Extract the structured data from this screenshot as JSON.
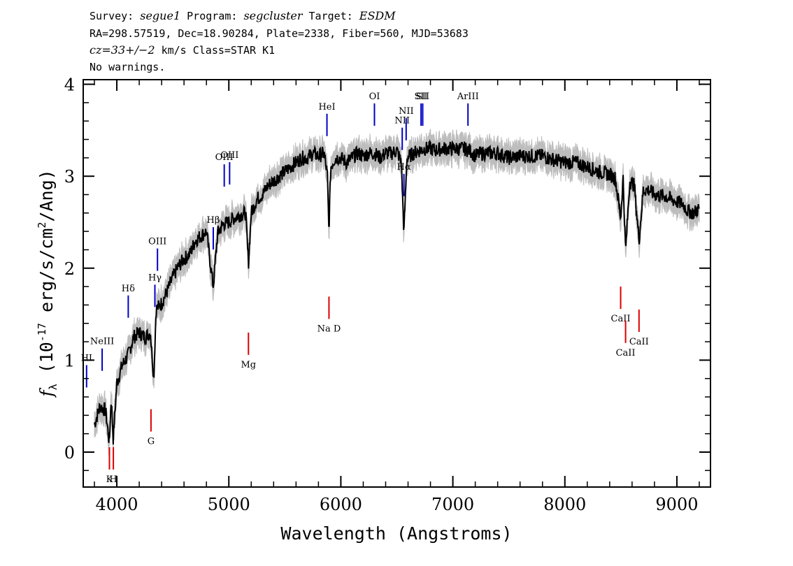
{
  "header": {
    "line1_a": "Survey: ",
    "line1_b": "segue1",
    "line1_c": " Program: ",
    "line1_d": "segcluster",
    "line1_e": " Target: ",
    "line1_f": "ESDM",
    "line2": "RA=298.57519, Dec=18.90284, Plate=2338, Fiber=560, MJD=53683",
    "line3_a": "cz=33+/−2",
    "line3_b": " km/s Class=STAR K1",
    "line4": "No warnings."
  },
  "colors": {
    "flux": "#000000",
    "error": "#bdbdbd",
    "emission": "#0000c8",
    "absorption": "#dc0000"
  },
  "chart_data": {
    "type": "line",
    "title": "",
    "xlabel": "Wavelength (Angstroms)",
    "ylabel": "fλ (10⁻¹⁷ erg/s/cm²/Ang)",
    "xlim": [
      3700,
      9300
    ],
    "ylim": [
      -0.38,
      4.05
    ],
    "x_ticks": [
      4000,
      5000,
      6000,
      7000,
      8000,
      9000
    ],
    "y_ticks": [
      0,
      1,
      2,
      3,
      4
    ],
    "grid": false,
    "legend": "none",
    "series": [
      {
        "name": "",
        "x": [
          3800,
          3850,
          3900,
          3933,
          3950,
          3968,
          4000,
          4050,
          4100,
          4150,
          4200,
          4250,
          4300,
          4330,
          4350,
          4400,
          4450,
          4500,
          4550,
          4600,
          4650,
          4700,
          4750,
          4800,
          4861,
          4900,
          4950,
          5000,
          5050,
          5100,
          5150,
          5175,
          5200,
          5250,
          5300,
          5350,
          5400,
          5450,
          5500,
          5550,
          5600,
          5650,
          5700,
          5750,
          5800,
          5850,
          5880,
          5893,
          5910,
          5950,
          6000,
          6050,
          6100,
          6150,
          6200,
          6250,
          6300,
          6350,
          6400,
          6450,
          6500,
          6540,
          6563,
          6590,
          6650,
          6700,
          6750,
          6800,
          6850,
          6900,
          6950,
          7000,
          7050,
          7100,
          7150,
          7200,
          7250,
          7300,
          7400,
          7500,
          7600,
          7700,
          7800,
          7900,
          8000,
          8100,
          8200,
          8300,
          8400,
          8450,
          8498,
          8520,
          8542,
          8580,
          8620,
          8662,
          8700,
          8750,
          8800,
          8900,
          9000,
          9050,
          9100,
          9150,
          9200
        ],
        "values": [
          0.3,
          0.5,
          0.45,
          0.1,
          0.6,
          0.15,
          0.75,
          0.95,
          1.05,
          1.25,
          1.3,
          1.25,
          1.3,
          0.8,
          1.55,
          1.62,
          1.75,
          1.9,
          2.02,
          2.1,
          2.15,
          2.3,
          2.35,
          2.4,
          1.8,
          2.38,
          2.48,
          2.5,
          2.55,
          2.58,
          2.6,
          2.05,
          2.6,
          2.75,
          2.8,
          2.9,
          2.95,
          3.0,
          3.05,
          3.1,
          3.15,
          3.2,
          3.2,
          3.25,
          3.22,
          3.25,
          3.0,
          2.4,
          3.1,
          3.2,
          3.2,
          3.15,
          3.2,
          3.25,
          3.22,
          3.25,
          3.25,
          3.2,
          3.25,
          3.25,
          3.28,
          3.15,
          2.38,
          3.2,
          3.25,
          3.28,
          3.3,
          3.3,
          3.28,
          3.3,
          3.3,
          3.3,
          3.3,
          3.3,
          3.28,
          3.22,
          3.25,
          3.25,
          3.25,
          3.2,
          3.22,
          3.22,
          3.22,
          3.18,
          3.15,
          3.15,
          3.1,
          3.05,
          3.02,
          2.98,
          2.55,
          2.98,
          2.18,
          2.95,
          2.9,
          2.3,
          2.85,
          2.85,
          2.8,
          2.78,
          2.72,
          2.7,
          2.62,
          2.6,
          2.65
        ]
      }
    ],
    "emission_lines": [
      {
        "label": "HI",
        "x": 3730
      },
      {
        "label": "NeIII",
        "x": 3869
      },
      {
        "label": "Hδ",
        "x": 4102
      },
      {
        "label": "Hγ",
        "x": 4340
      },
      {
        "label": "OIII",
        "x": 4363
      },
      {
        "label": "Hβ",
        "x": 4861
      },
      {
        "label": "OIII",
        "x": 4959
      },
      {
        "label": "OIII",
        "x": 5007
      },
      {
        "label": "HeI",
        "x": 5876
      },
      {
        "label": "OI",
        "x": 6300
      },
      {
        "label": "NII",
        "x": 6548
      },
      {
        "label": "Hα",
        "x": 6563
      },
      {
        "label": "NII",
        "x": 6583
      },
      {
        "label": "SII",
        "x": 6716
      },
      {
        "label": "SII",
        "x": 6731
      },
      {
        "label": "ArIII",
        "x": 7135
      }
    ],
    "absorption_lines": [
      {
        "label": "K",
        "x": 3934
      },
      {
        "label": "H",
        "x": 3969
      },
      {
        "label": "G",
        "x": 4305
      },
      {
        "label": "Mg",
        "x": 5175
      },
      {
        "label": "Na D",
        "x": 5894
      },
      {
        "label": "CaII",
        "x": 8498
      },
      {
        "label": "CaII",
        "x": 8542
      },
      {
        "label": "CaII",
        "x": 8662
      }
    ]
  }
}
